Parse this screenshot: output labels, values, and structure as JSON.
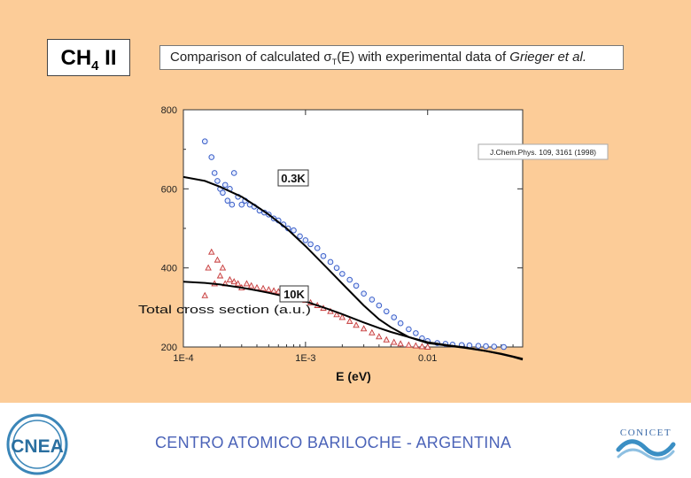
{
  "slide": {
    "molecule": "CH",
    "molecule_sub": "4",
    "molecule_suffix": " II",
    "caption_prefix": "Comparison of calculated σ",
    "caption_sub": "T",
    "caption_mid": "(E) with experimental data of ",
    "caption_italic": "Grieger et al."
  },
  "chart_data": {
    "type": "scatter",
    "title": "",
    "xlabel": "E (eV)",
    "ylabel": "Total cross section (a.u.)",
    "x_scale": "log",
    "xlim": [
      0.0001,
      0.06
    ],
    "ylim": [
      200,
      800
    ],
    "x_ticks": [
      0.0001,
      0.001,
      0.01
    ],
    "x_tick_labels": [
      "1E-4",
      "1E-3",
      "0.01"
    ],
    "y_ticks": [
      200,
      400,
      600,
      800
    ],
    "y_tick_labels": [
      "200",
      "400",
      "600",
      "800"
    ],
    "reference": "J.Chem.Phys. 109, 3161 (1998)",
    "grid": false,
    "series": [
      {
        "name": "0.3K",
        "kind": "experiment",
        "marker": "circle",
        "color": "#3a5fc8",
        "x": [
          0.00015,
          0.00017,
          0.00018,
          0.00019,
          0.0002,
          0.00021,
          0.00022,
          0.00023,
          0.00024,
          0.00025,
          0.00026,
          0.00028,
          0.0003,
          0.00032,
          0.00035,
          0.00038,
          0.00042,
          0.00046,
          0.0005,
          0.00055,
          0.0006,
          0.00066,
          0.00072,
          0.0008,
          0.0009,
          0.001,
          0.0011,
          0.00125,
          0.0014,
          0.0016,
          0.0018,
          0.002,
          0.0023,
          0.0026,
          0.003,
          0.0035,
          0.004,
          0.0046,
          0.0053,
          0.006,
          0.007,
          0.008,
          0.009,
          0.01,
          0.012,
          0.014,
          0.016,
          0.019,
          0.022,
          0.026,
          0.03,
          0.035,
          0.042
        ],
        "y": [
          720,
          680,
          640,
          620,
          600,
          590,
          610,
          570,
          600,
          560,
          640,
          580,
          560,
          570,
          560,
          555,
          545,
          540,
          535,
          525,
          520,
          510,
          500,
          495,
          480,
          470,
          460,
          450,
          430,
          415,
          400,
          385,
          370,
          355,
          335,
          320,
          305,
          290,
          275,
          260,
          245,
          235,
          222,
          215,
          210,
          208,
          206,
          205,
          204,
          203,
          202,
          201,
          200
        ]
      },
      {
        "name": "10K",
        "kind": "experiment",
        "marker": "triangle",
        "color": "#c43a3a",
        "x": [
          0.00015,
          0.00016,
          0.00017,
          0.00018,
          0.00019,
          0.0002,
          0.00021,
          0.00022,
          0.00024,
          0.00026,
          0.00028,
          0.0003,
          0.00033,
          0.00036,
          0.0004,
          0.00045,
          0.0005,
          0.00055,
          0.0006,
          0.00066,
          0.00072,
          0.0008,
          0.0009,
          0.001,
          0.0011,
          0.00125,
          0.0014,
          0.0016,
          0.0018,
          0.002,
          0.0023,
          0.0026,
          0.003,
          0.0035,
          0.004,
          0.0046,
          0.0053,
          0.006,
          0.007,
          0.008,
          0.009,
          0.01
        ],
        "y": [
          330,
          400,
          440,
          360,
          420,
          380,
          400,
          360,
          370,
          365,
          360,
          350,
          360,
          355,
          350,
          348,
          345,
          342,
          340,
          336,
          332,
          328,
          322,
          318,
          312,
          305,
          298,
          290,
          282,
          275,
          265,
          255,
          246,
          236,
          226,
          218,
          212,
          208,
          205,
          203,
          201,
          200
        ]
      },
      {
        "name": "calc 0.3K",
        "kind": "theory",
        "color": "#000000",
        "x": [
          0.0001,
          0.00015,
          0.0002,
          0.0003,
          0.0004,
          0.0005,
          0.0007,
          0.001,
          0.0015,
          0.002,
          0.003,
          0.004,
          0.005,
          0.007,
          0.01,
          0.015,
          0.02,
          0.03,
          0.04,
          0.05,
          0.06
        ],
        "y": [
          630,
          620,
          605,
          580,
          555,
          535,
          500,
          455,
          400,
          360,
          305,
          270,
          250,
          225,
          210,
          203,
          198,
          190,
          182,
          175,
          168
        ]
      },
      {
        "name": "calc 10K",
        "kind": "theory",
        "color": "#000000",
        "x": [
          0.0001,
          0.00015,
          0.0002,
          0.0003,
          0.0004,
          0.0005,
          0.0007,
          0.001,
          0.0015,
          0.002,
          0.003,
          0.004,
          0.005,
          0.007,
          0.01,
          0.015,
          0.02,
          0.03,
          0.04,
          0.05,
          0.06
        ],
        "y": [
          365,
          362,
          358,
          350,
          343,
          337,
          327,
          315,
          297,
          283,
          262,
          248,
          238,
          225,
          212,
          204,
          199,
          190,
          183,
          176,
          170
        ]
      }
    ],
    "annotations": [
      "0.3K",
      "10K"
    ]
  },
  "footer": {
    "institution": "CENTRO ATOMICO BARILOCHE - ARGENTINA",
    "logo_left": "CNEA",
    "logo_right": "CONICET"
  }
}
